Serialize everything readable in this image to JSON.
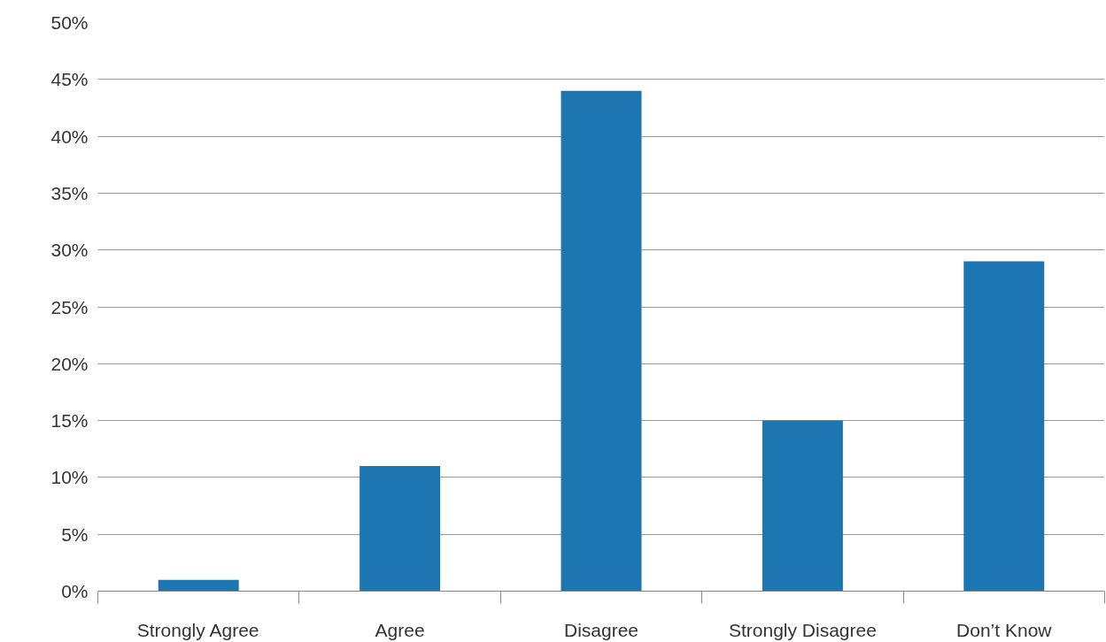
{
  "chart_data": {
    "type": "bar",
    "categories": [
      "Strongly Agree",
      "Agree",
      "Disagree",
      "Strongly Disagree",
      "Don’t Know"
    ],
    "values": [
      1,
      11,
      44,
      15,
      29
    ],
    "color": "#1b76b2",
    "ylim": [
      0,
      50
    ],
    "yticks": [
      {
        "value": 0,
        "label": "0%"
      },
      {
        "value": 5,
        "label": "5%"
      },
      {
        "value": 10,
        "label": "10%"
      },
      {
        "value": 15,
        "label": "15%"
      },
      {
        "value": 20,
        "label": "20%"
      },
      {
        "value": 25,
        "label": "25%"
      },
      {
        "value": 30,
        "label": "30%"
      },
      {
        "value": 35,
        "label": "35%"
      },
      {
        "value": 40,
        "label": "40%"
      },
      {
        "value": 45,
        "label": "45%"
      },
      {
        "value": 50,
        "label": "50%"
      }
    ],
    "grid": "y"
  }
}
